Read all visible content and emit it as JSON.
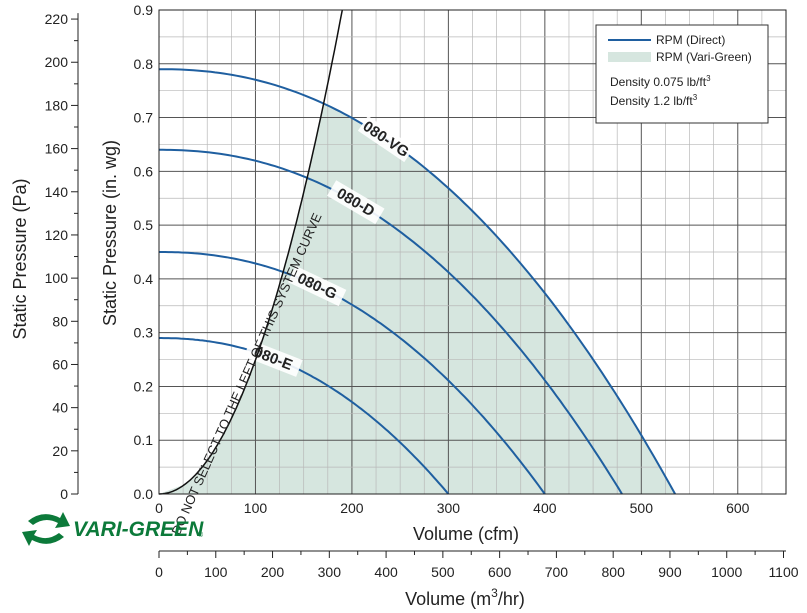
{
  "chart_data": {
    "type": "line",
    "y_left_label": "Static Pressure (in. wg)",
    "y_left_range": [
      0,
      0.9
    ],
    "y_left_ticks": [
      "0.0",
      "0.1",
      "0.2",
      "0.3",
      "0.4",
      "0.5",
      "0.6",
      "0.7",
      "0.8",
      "0.9"
    ],
    "y_pa_label": "Static Pressure (Pa)",
    "y_pa_range": [
      0,
      224.2
    ],
    "y_pa_ticks": [
      "0",
      "20",
      "40",
      "60",
      "80",
      "100",
      "120",
      "140",
      "160",
      "180",
      "200",
      "220"
    ],
    "x_label": "Volume (cfm)",
    "x_range": [
      0,
      650
    ],
    "x_ticks": [
      "0",
      "100",
      "200",
      "300",
      "400",
      "500",
      "600"
    ],
    "x2_label_prefix": "Volume (m",
    "x2_label_sup": "3",
    "x2_label_suffix": "/hr)",
    "x2_range": [
      0,
      1104.4
    ],
    "x2_ticks": [
      "0",
      "100",
      "200",
      "300",
      "400",
      "500",
      "600",
      "700",
      "800",
      "900",
      "1000",
      "1100"
    ],
    "grid": true,
    "legend": {
      "position": "top-right",
      "items": [
        {
          "label": "RPM (Direct)",
          "color": "#1f5fa0",
          "kind": "line"
        },
        {
          "label": "RPM (Vari-Green)",
          "color": "#d6e6df",
          "kind": "fill"
        }
      ],
      "notes": [
        {
          "text": "Density 0.075 lb/ft",
          "sup": "3"
        },
        {
          "text": "Density 1.2 lb/ft",
          "sup": "3"
        }
      ]
    },
    "series": [
      {
        "name": "080-VG",
        "shutoff_sp": 0.79,
        "free_cfm": 535
      },
      {
        "name": "080-D",
        "shutoff_sp": 0.64,
        "free_cfm": 480
      },
      {
        "name": "080-G",
        "shutoff_sp": 0.45,
        "free_cfm": 400
      },
      {
        "name": "080-E",
        "shutoff_sp": 0.29,
        "free_cfm": 300
      }
    ],
    "system_curve": {
      "label": "DO NOT SELECT TO THE LEFT OF THIS SYSTEM CURVE"
    },
    "colors": {
      "curve": "#1f5fa0",
      "fill": "#d6e6df",
      "grid": "#b8b8b8",
      "axis": "#222222"
    }
  },
  "logo": {
    "text": "VARI-GREEN",
    "mark": "®",
    "color": "#0c7a3a",
    "icon": "arrows-cycle-icon"
  }
}
